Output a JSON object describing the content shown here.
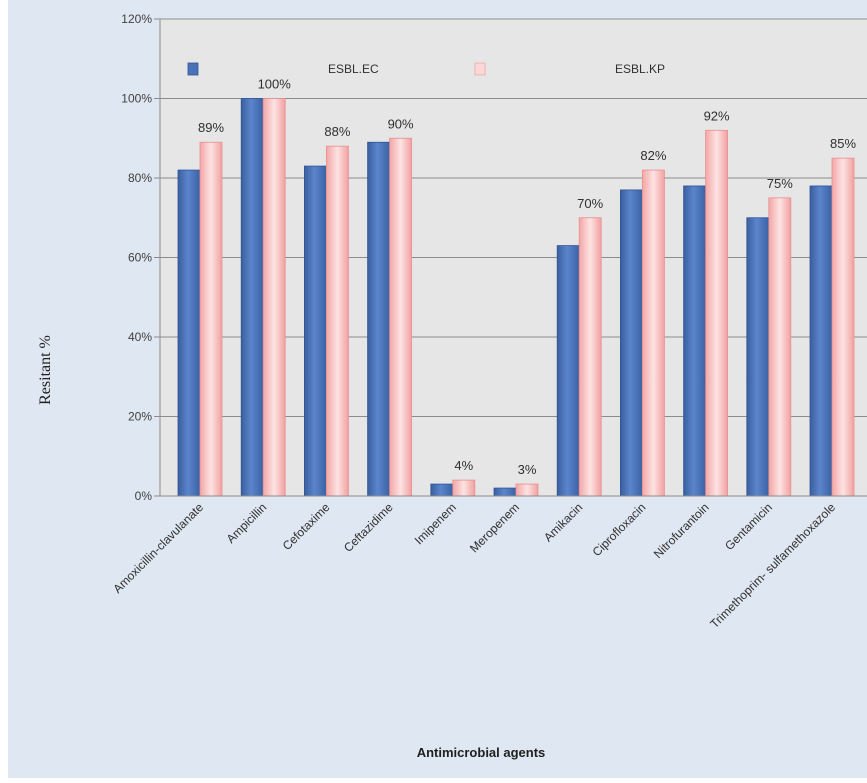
{
  "chart_data": {
    "type": "bar",
    "xlabel": "Antimicrobial agents",
    "ylabel": "Resitant  %",
    "ylim": [
      0,
      120
    ],
    "yticks": [
      "0%",
      "20%",
      "40%",
      "60%",
      "80%",
      "100%",
      "120%"
    ],
    "grid": true,
    "legend_position": "top",
    "categories": [
      "Amoxicillin-clavulanate",
      "Ampicillin",
      "Cefotaxime",
      "Ceftazidime",
      "Imipenem",
      "Meropenem",
      "Amikacin",
      "Ciprofloxacin",
      "Nitrofurantoin",
      "Gentamicin",
      "Trimethoprim- sulfamethoxazole"
    ],
    "series": [
      {
        "name": "ESBL.EC",
        "values": [
          82,
          100,
          83,
          89,
          3,
          2,
          63,
          77,
          78,
          70,
          78
        ],
        "data_labels": [
          "",
          "",
          "",
          "",
          "",
          "",
          "",
          "",
          "",
          "",
          ""
        ]
      },
      {
        "name": "ESBL.KP",
        "values": [
          89,
          100,
          88,
          90,
          4,
          3,
          70,
          82,
          92,
          75,
          85
        ],
        "data_labels": [
          "89%",
          "100%",
          "88%",
          "90%",
          "4%",
          "3%",
          "70%",
          "82%",
          "92%",
          "75%",
          "85%"
        ]
      }
    ],
    "colors": {
      "ESBL.EC": "#4a72b8",
      "ESBL.KP": "#f7c1c1",
      "background": "#dfe7f2",
      "plot_area": "#e6e6e6"
    }
  }
}
